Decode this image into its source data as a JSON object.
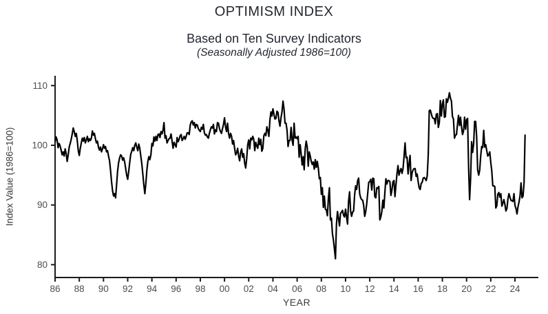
{
  "chart_data": {
    "type": "line",
    "title": "OPTIMISM INDEX",
    "subtitle": "Based on Ten Survey Indicators",
    "note": "(Seasonally Adjusted 1986=100)",
    "xlabel": "YEAR",
    "ylabel": "Index Value (1986=100)",
    "line_color": "#000000",
    "axis_color": "#1a1a1a",
    "tick_label_color": "#4d4d4d",
    "grid": false,
    "legend": "none",
    "x_start_year": 1986,
    "x_frequency": "monthly",
    "x_end": "2024-11",
    "x_tick_years": [
      1986,
      1988,
      1990,
      1992,
      1994,
      1996,
      1998,
      2000,
      2002,
      2004,
      2006,
      2008,
      2010,
      2012,
      2014,
      2016,
      2018,
      2020,
      2022,
      2024
    ],
    "x_tick_labels": [
      "86",
      "88",
      "90",
      "92",
      "94",
      "96",
      "98",
      "00",
      "02",
      "04",
      "06",
      "08",
      "10",
      "12",
      "14",
      "16",
      "18",
      "20",
      "22",
      "24"
    ],
    "y_ticks": [
      80,
      90,
      100,
      110
    ],
    "y_tick_labels": [
      "80",
      "90",
      "100",
      "110"
    ],
    "ylim": [
      77.8,
      111.7
    ],
    "values": [
      100.6,
      101.4,
      100.9,
      99.6,
      100.3,
      99.9,
      99.2,
      98.4,
      98.9,
      98.2,
      99.4,
      98.6,
      97.3,
      98.4,
      99.7,
      100.3,
      101.0,
      101.9,
      102.9,
      102.3,
      101.5,
      102.0,
      100.8,
      99.1,
      98.3,
      99.5,
      100.4,
      101.2,
      100.7,
      101.3,
      100.4,
      100.9,
      101.5,
      100.6,
      101.1,
      100.8,
      101.2,
      102.4,
      101.7,
      102.0,
      101.1,
      100.4,
      100.7,
      99.7,
      99.2,
      99.7,
      98.9,
      99.4,
      100.1,
      99.5,
      99.8,
      98.9,
      99.1,
      98.2,
      97.4,
      95.8,
      93.9,
      92.4,
      91.5,
      91.9,
      91.2,
      93.4,
      95.7,
      97.1,
      97.9,
      98.4,
      98.2,
      97.5,
      97.9,
      97.2,
      96.1,
      95.0,
      94.3,
      95.6,
      97.1,
      98.5,
      99.0,
      99.6,
      99.1,
      100.0,
      100.4,
      99.7,
      99.1,
      100.2,
      99.5,
      98.2,
      96.9,
      95.2,
      93.4,
      91.9,
      93.6,
      95.8,
      97.3,
      98.1,
      97.6,
      98.4,
      100.3,
      99.9,
      101.4,
      100.7,
      101.5,
      100.8,
      101.8,
      101.9,
      101.3,
      102.3,
      101.9,
      102.5,
      103.8,
      101.2,
      101.6,
      100.4,
      100.8,
      101.1,
      101.2,
      101.9,
      100.7,
      99.5,
      100.5,
      100.1,
      99.7,
      101.3,
      100.6,
      101.0,
      101.6,
      101.8,
      100.8,
      101.1,
      101.5,
      101.0,
      101.5,
      102.1,
      102.1,
      101.8,
      103.4,
      103.9,
      104.1,
      103.4,
      103.8,
      102.9,
      103.5,
      103.4,
      102.8,
      102.5,
      102.3,
      103.0,
      102.7,
      103.5,
      102.1,
      101.7,
      101.8,
      101.4,
      101.2,
      102.0,
      102.6,
      103.1,
      102.9,
      103.5,
      101.9,
      102.6,
      102.3,
      103.8,
      103.7,
      102.8,
      102.3,
      102.0,
      102.8,
      103.5,
      104.6,
      103.1,
      102.3,
      103.7,
      102.0,
      101.2,
      102.0,
      101.5,
      100.2,
      100.8,
      99.5,
      98.4,
      98.7,
      99.5,
      98.2,
      97.4,
      98.8,
      99.4,
      98.0,
      98.6,
      97.0,
      96.2,
      97.8,
      100.1,
      100.9,
      99.4,
      101.2,
      100.9,
      101.5,
      101.0,
      99.1,
      100.5,
      99.9,
      99.5,
      101.2,
      100.1,
      101.0,
      99.0,
      99.5,
      101.6,
      102.0,
      101.6,
      103.1,
      102.5,
      101.5,
      104.2,
      105.6,
      104.9,
      106.1,
      105.2,
      104.4,
      104.5,
      105.7,
      105.5,
      104.1,
      103.2,
      104.6,
      105.6,
      107.4,
      106.1,
      103.7,
      103.7,
      102.5,
      99.8,
      100.8,
      100.8,
      103.0,
      100.9,
      100.0,
      103.7,
      101.2,
      101.4,
      101.1,
      101.5,
      98.0,
      100.1,
      98.5,
      96.7,
      98.1,
      95.9,
      99.4,
      100.7,
      99.7,
      96.5,
      98.9,
      98.2,
      97.3,
      96.8,
      97.2,
      96.0,
      97.6,
      96.3,
      97.3,
      96.2,
      94.4,
      94.6,
      91.8,
      92.9,
      89.6,
      91.5,
      89.3,
      89.2,
      88.2,
      91.1,
      92.9,
      87.5,
      87.8,
      85.2,
      84.1,
      82.6,
      81.0,
      86.8,
      88.9,
      87.8,
      86.5,
      88.6,
      88.8,
      89.1,
      88.3,
      88.0,
      89.3,
      88.0,
      86.8,
      90.6,
      92.2,
      89.0,
      88.1,
      88.8,
      89.0,
      91.7,
      93.2,
      92.6,
      94.1,
      94.5,
      91.9,
      91.2,
      90.9,
      90.8,
      89.9,
      88.1,
      88.9,
      90.2,
      92.0,
      93.8,
      93.9,
      94.3,
      92.5,
      94.5,
      94.4,
      91.4,
      91.2,
      92.9,
      92.8,
      93.1,
      87.5,
      88.0,
      88.9,
      90.8,
      89.5,
      92.1,
      94.4,
      93.5,
      94.1,
      94.1,
      93.9,
      91.6,
      92.5,
      93.9,
      94.1,
      91.4,
      93.4,
      95.2,
      96.6,
      95.0,
      95.7,
      96.1,
      95.3,
      96.1,
      98.1,
      100.4,
      97.9,
      98.0,
      95.2,
      96.9,
      98.3,
      94.1,
      95.4,
      95.9,
      96.1,
      96.1,
      94.8,
      95.2,
      93.9,
      92.9,
      92.6,
      93.6,
      93.8,
      94.5,
      94.6,
      94.4,
      94.1,
      94.9,
      98.4,
      105.8,
      105.9,
      105.3,
      104.7,
      104.5,
      104.5,
      103.6,
      105.2,
      105.3,
      103.0,
      103.8,
      107.5,
      104.9,
      106.9,
      107.6,
      104.7,
      104.8,
      107.8,
      107.2,
      107.9,
      108.8,
      107.9,
      107.4,
      104.8,
      104.4,
      101.2,
      101.7,
      101.8,
      103.5,
      105.0,
      103.3,
      104.7,
      103.1,
      101.8,
      102.4,
      104.7,
      102.7,
      104.3,
      104.5,
      96.4,
      90.9,
      94.4,
      100.6,
      98.8,
      100.2,
      104.0,
      104.0,
      101.4,
      95.9,
      95.0,
      95.8,
      98.2,
      99.8,
      99.6,
      102.5,
      99.7,
      100.1,
      99.1,
      98.2,
      98.4,
      98.9,
      97.1,
      95.7,
      93.2,
      93.2,
      93.1,
      89.5,
      89.9,
      91.8,
      92.1,
      91.3,
      91.9,
      89.8,
      90.3,
      90.9,
      90.1,
      89.0,
      89.4,
      91.0,
      91.9,
      91.3,
      90.8,
      90.7,
      90.6,
      91.9,
      89.9,
      89.4,
      88.5,
      89.7,
      90.5,
      91.5,
      93.7,
      91.2,
      91.5,
      93.7,
      101.7
    ]
  }
}
